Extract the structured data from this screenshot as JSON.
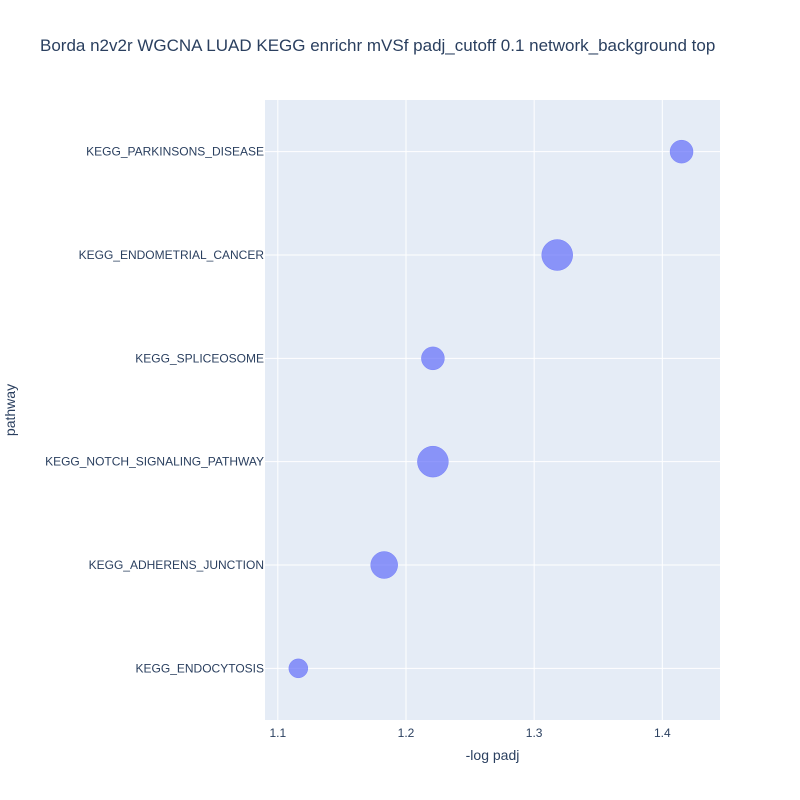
{
  "chart_data": {
    "type": "scatter",
    "title": "Borda n2v2r WGCNA LUAD KEGG enrichr mVSf padj_cutoff 0.1 network_background top",
    "xlabel": "-log padj",
    "ylabel": "pathway",
    "xlim": [
      1.09,
      1.445
    ],
    "x_ticks": [
      1.1,
      1.2,
      1.3,
      1.4
    ],
    "x_tick_labels": [
      "1.1",
      "1.2",
      "1.3",
      "1.4"
    ],
    "categories": [
      "KEGG_PARKINSONS_DISEASE",
      "KEGG_ENDOMETRIAL_CANCER",
      "KEGG_SPLICEOSOME",
      "KEGG_NOTCH_SIGNALING_PATHWAY",
      "KEGG_ADHERENS_JUNCTION",
      "KEGG_ENDOCYTOSIS"
    ],
    "series": [
      {
        "points": [
          {
            "pathway": "KEGG_PARKINSONS_DISEASE",
            "x": 1.415,
            "size": 3
          },
          {
            "pathway": "KEGG_ENDOMETRIAL_CANCER",
            "x": 1.318,
            "size": 5
          },
          {
            "pathway": "KEGG_SPLICEOSOME",
            "x": 1.221,
            "size": 3
          },
          {
            "pathway": "KEGG_NOTCH_SIGNALING_PATHWAY",
            "x": 1.221,
            "size": 5
          },
          {
            "pathway": "KEGG_ADHERENS_JUNCTION",
            "x": 1.183,
            "size": 4
          },
          {
            "pathway": "KEGG_ENDOCYTOSIS",
            "x": 1.116,
            "size": 2
          }
        ]
      }
    ],
    "grid": true,
    "colors": {
      "marker": "#636efa",
      "plot_background": "#e5ecf6",
      "grid": "#ffffff",
      "text": "#2a3f5f"
    }
  }
}
